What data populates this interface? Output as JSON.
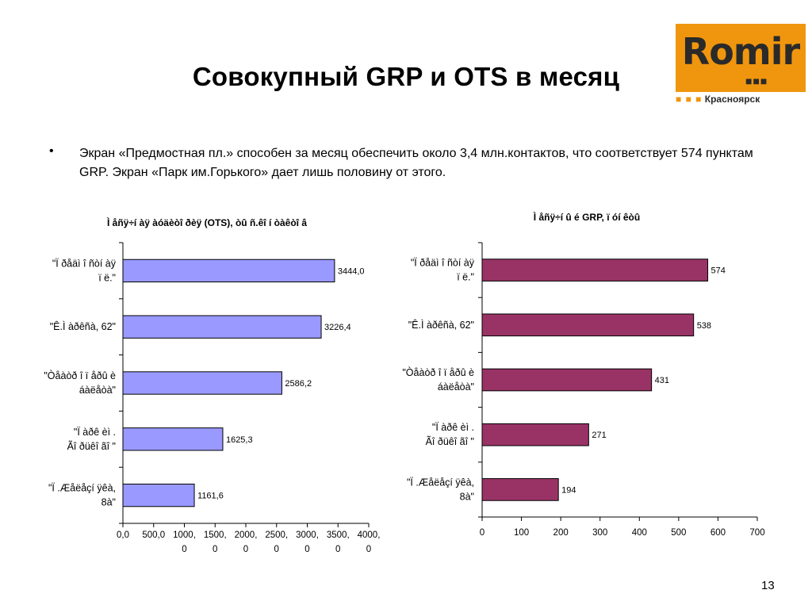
{
  "slide": {
    "title": "Совокупный GRP и OTS в месяц",
    "bullet_symbol": "•",
    "text": "Экран «Предмостная пл.» способен за месяц обеспечить около 3,4 млн.контактов, что соответствует 574 пунктам GRP. Экран «Парк им.Горького» дает лишь половину от этого.",
    "page_number": "13"
  },
  "logo": {
    "word": "Romir",
    "dots": "■■■",
    "city_prefix": "■ ■ ■",
    "city": "Красноярск",
    "colors": {
      "orange": "#f0960e",
      "dark": "#2a2a2a"
    }
  },
  "chart_data": [
    {
      "type": "bar",
      "orientation": "horizontal",
      "title": "Ì åñÿ÷í àÿ àóäèòî ðèÿ (OTS), òû ñ.êî í òàêòî â",
      "categories": [
        [
          "\"Ï ðåäì î ñòí àÿ",
          "ï ë.\""
        ],
        [
          "\"Ê.Ì àðêñà, 62\""
        ],
        [
          "\"Òåàòð î ï åðû  è",
          "áàëåòà\""
        ],
        [
          "\"Ï àðê èì .",
          "Ãî ðüêî ãî \""
        ],
        [
          "\"Ï .Æåëåçí ÿêà,",
          "8à\""
        ]
      ],
      "values": [
        3444.0,
        3226.4,
        2586.2,
        1625.3,
        1161.6
      ],
      "value_labels": [
        "3444,0",
        "3226,4",
        "2586,2",
        "1625,3",
        "1161,6"
      ],
      "xlim": [
        0,
        4000
      ],
      "ticks": [
        [
          "0,0"
        ],
        [
          "500,0"
        ],
        [
          "1000,",
          "0"
        ],
        [
          "1500,",
          "0"
        ],
        [
          "2000,",
          "0"
        ],
        [
          "2500,",
          "0"
        ],
        [
          "3000,",
          "0"
        ],
        [
          "3500,",
          "0"
        ],
        [
          "4000,",
          "0"
        ]
      ],
      "bar_color": "#9999ff",
      "grid": false
    },
    {
      "type": "bar",
      "orientation": "horizontal",
      "title": "Ì åñÿ÷í û é GRP, ï óí êòû",
      "categories": [
        [
          "\"Ï ðåäì î ñòí àÿ",
          "ï ë.\""
        ],
        [
          "\"Ê.Ì àðêñà, 62\""
        ],
        [
          "\"Òåàòð î ï åðû  è",
          "áàëåòà\""
        ],
        [
          "\"Ï àðê èì .",
          "Ãî ðüêî ãî \""
        ],
        [
          "\"Ï .Æåëåçí ÿêà,",
          "8à\""
        ]
      ],
      "values": [
        574,
        538,
        431,
        271,
        194
      ],
      "value_labels": [
        "574",
        "538",
        "431",
        "271",
        "194"
      ],
      "xlim": [
        0,
        700
      ],
      "ticks": [
        [
          "0"
        ],
        [
          "100"
        ],
        [
          "200"
        ],
        [
          "300"
        ],
        [
          "400"
        ],
        [
          "500"
        ],
        [
          "600"
        ],
        [
          "700"
        ]
      ],
      "bar_color": "#993366",
      "grid": false
    }
  ]
}
